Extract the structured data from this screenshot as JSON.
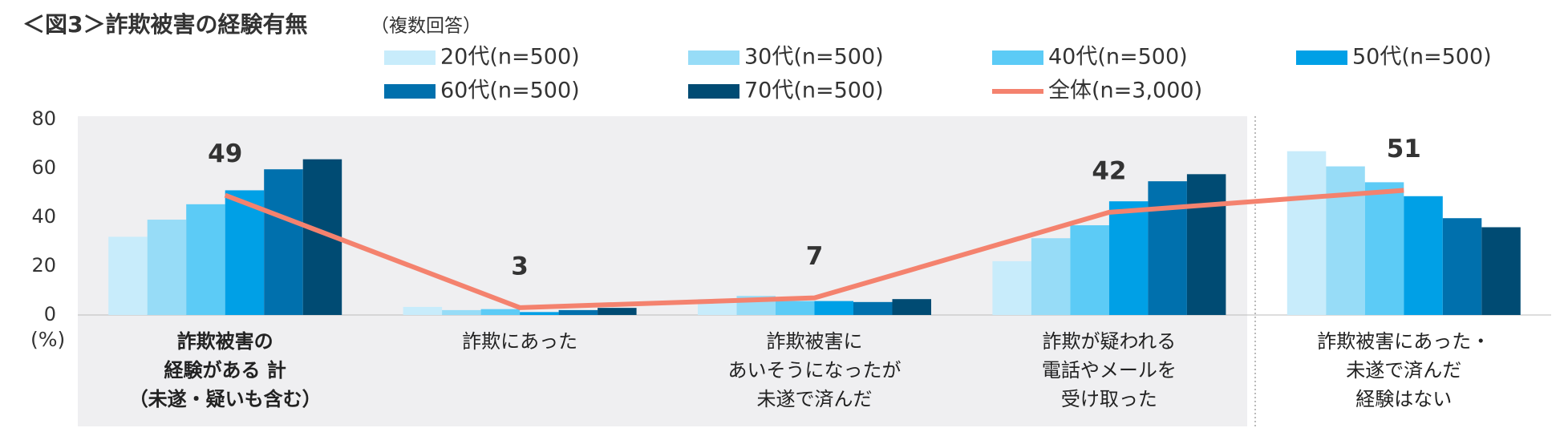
{
  "chart_data": {
    "type": "bar",
    "title": "＜図3＞詐欺被害の経験有無",
    "subtitle": "（複数回答）",
    "y_unit": "(%)",
    "categories": [
      "詐欺被害の\n経験がある 計\n（未遂・疑いも含む）",
      "詐欺にあった",
      "詐欺被害に\nあいそうになったが\n未遂で済んだ",
      "詐欺が疑われる\n電話やメールを\n受け取った",
      "詐欺被害にあった・\n未遂で済んだ\n経験はない"
    ],
    "series": [
      {
        "name": "20代(n=500)",
        "color": "#c8ecfb",
        "values": [
          32,
          3.3,
          6.5,
          22,
          67
        ]
      },
      {
        "name": "30代(n=500)",
        "color": "#97dcf7",
        "values": [
          39,
          2,
          7.8,
          31.4,
          60.8
        ]
      },
      {
        "name": "40代(n=500)",
        "color": "#5ccbf6",
        "values": [
          45.3,
          2.4,
          5.7,
          36.7,
          54.3
        ]
      },
      {
        "name": "50代(n=500)",
        "color": "#00a0e6",
        "values": [
          51,
          1.2,
          5.7,
          46.5,
          48.6
        ]
      },
      {
        "name": "60代(n=500)",
        "color": "#0070ad",
        "values": [
          59.6,
          2,
          5.3,
          54.7,
          39.6
        ]
      },
      {
        "name": "70代(n=500)",
        "color": "#004b73",
        "values": [
          63.7,
          2.9,
          6.5,
          57.6,
          35.9
        ]
      },
      {
        "name": "全体(n=3,000)",
        "color": "#f4826e",
        "type": "line",
        "values": [
          49,
          3,
          7,
          42,
          51
        ]
      }
    ],
    "ylim": [
      0,
      80
    ],
    "yticks": [
      0,
      20,
      40,
      60,
      80
    ],
    "grid": false
  }
}
